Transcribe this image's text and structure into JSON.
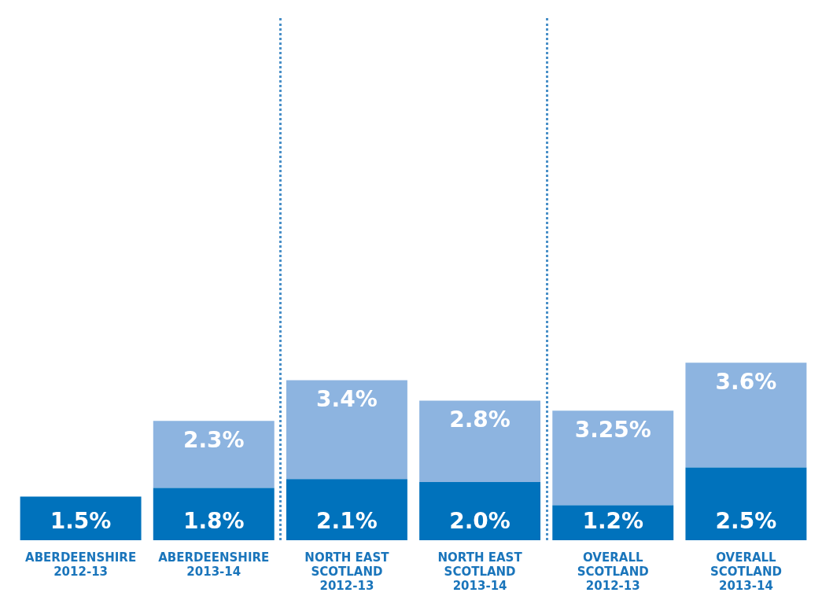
{
  "chart_data": {
    "type": "bar",
    "stacked": true,
    "legend": false,
    "grid": false,
    "categories": [
      "ABERDEENSHIRE 2012-13",
      "ABERDEENSHIRE 2013-14",
      "NORTH EAST SCOTLAND 2012-13",
      "NORTH EAST SCOTLAND 2013-14",
      "OVERALL SCOTLAND 2012-13",
      "OVERALL SCOTLAND 2013-14"
    ],
    "series": [
      {
        "color": "#0072bc",
        "values": [
          1.5,
          1.8,
          2.1,
          2.0,
          1.2,
          2.5
        ],
        "value_labels": [
          "1.5%",
          "1.8%",
          "2.1%",
          "2.0%",
          "1.2%",
          "2.5%"
        ]
      },
      {
        "color": "#8db4e0",
        "values": [
          null,
          2.3,
          3.4,
          2.8,
          3.25,
          3.6
        ],
        "value_labels": [
          null,
          "2.3%",
          "3.4%",
          "2.8%",
          "3.25%",
          "3.6%"
        ]
      }
    ]
  }
}
